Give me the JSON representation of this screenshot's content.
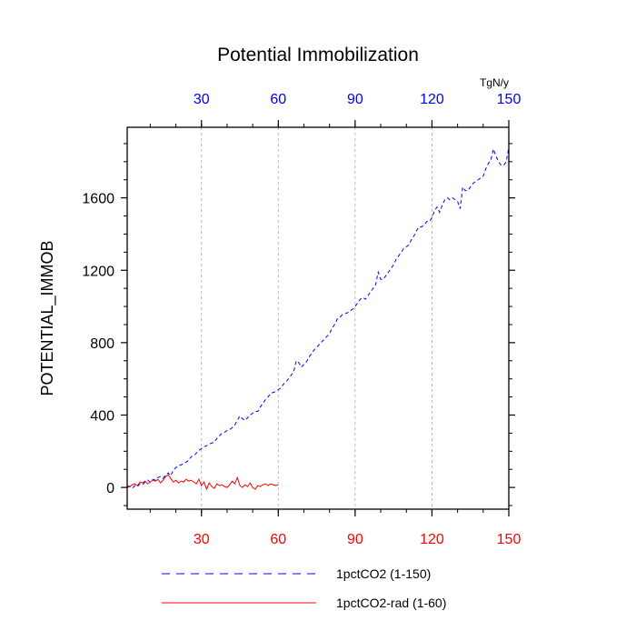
{
  "chart_data": {
    "type": "line",
    "title": "Potential Immobilization",
    "ylabel": "POTENTIAL_IMMOB",
    "units_label": "TgN/y",
    "xlim": [
      1,
      150
    ],
    "ylim": [
      -120,
      1990
    ],
    "yticks": [
      0,
      400,
      800,
      1200,
      1600
    ],
    "xticks_bottom": [
      30,
      60,
      90,
      120,
      150
    ],
    "xticks_top": [
      30,
      60,
      90,
      120,
      150
    ],
    "bottom_tick_color": "#ff0000",
    "top_tick_color": "#0000ff",
    "vertical_grid_at": [
      30,
      60,
      90,
      120
    ],
    "grid": "vertical dashed at top-axis ticks",
    "legend_position": "bottom",
    "series": [
      {
        "name": "1pctCO2 (1-150)",
        "color": "#0000ff",
        "dash": "dashed",
        "x_start": 1,
        "values": [
          0,
          5,
          -5,
          10,
          5,
          20,
          15,
          30,
          40,
          30,
          45,
          40,
          55,
          60,
          50,
          70,
          80,
          65,
          95,
          110,
          120,
          125,
          130,
          140,
          150,
          170,
          175,
          190,
          205,
          215,
          225,
          230,
          240,
          245,
          250,
          270,
          285,
          300,
          305,
          315,
          320,
          330,
          345,
          370,
          395,
          380,
          370,
          385,
          400,
          410,
          420,
          420,
          445,
          465,
          485,
          500,
          520,
          525,
          530,
          540,
          550,
          570,
          585,
          600,
          620,
          640,
          700,
          690,
          665,
          680,
          695,
          720,
          740,
          760,
          775,
          790,
          805,
          820,
          835,
          850,
          880,
          900,
          930,
          940,
          955,
          960,
          965,
          975,
          985,
          1000,
          1020,
          1040,
          1050,
          1040,
          1060,
          1080,
          1100,
          1120,
          1190,
          1150,
          1150,
          1170,
          1190,
          1210,
          1230,
          1260,
          1280,
          1300,
          1320,
          1330,
          1340,
          1370,
          1390,
          1420,
          1440,
          1440,
          1450,
          1470,
          1470,
          1490,
          1530,
          1550,
          1520,
          1560,
          1590,
          1600,
          1590,
          1600,
          1590,
          1580,
          1540,
          1660,
          1640,
          1640,
          1660,
          1680,
          1690,
          1700,
          1710,
          1720,
          1760,
          1790,
          1810,
          1870,
          1830,
          1800,
          1780,
          1780,
          1800,
          1880
        ]
      },
      {
        "name": "1pctCO2-rad (1-60)",
        "color": "#ff0000",
        "dash": "solid",
        "x_start": 1,
        "values": [
          10,
          5,
          15,
          20,
          10,
          30,
          25,
          35,
          20,
          30,
          40,
          35,
          45,
          25,
          40,
          60,
          70,
          50,
          30,
          40,
          25,
          35,
          30,
          45,
          35,
          40,
          30,
          20,
          45,
          10,
          30,
          -10,
          25,
          5,
          -5,
          20,
          10,
          15,
          5,
          0,
          15,
          35,
          20,
          55,
          10,
          0,
          15,
          5,
          25,
          0,
          -10,
          10,
          5,
          15,
          20,
          10,
          20,
          15,
          10,
          15
        ]
      }
    ]
  }
}
